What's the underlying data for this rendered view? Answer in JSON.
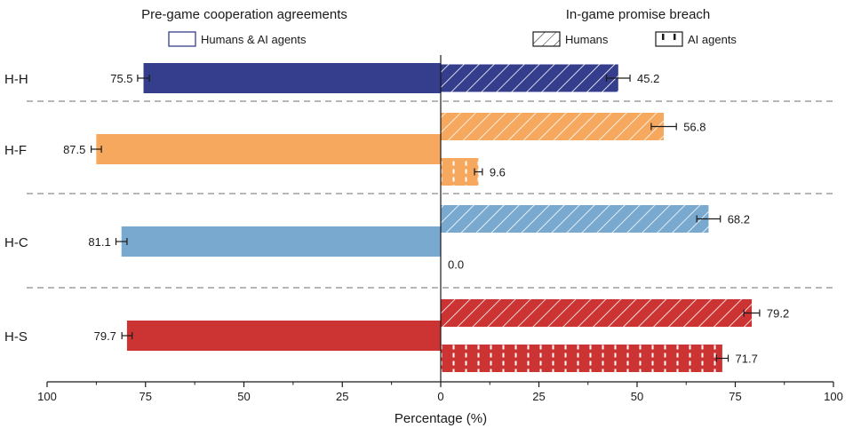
{
  "chart_data": {
    "type": "bar",
    "orientation": "horizontal-diverging",
    "xlabel": "Percentage (%)",
    "ticks": [
      100,
      75,
      50,
      25,
      0,
      25,
      50,
      75,
      100
    ],
    "left_panel": {
      "title": "Pre-game cooperation agreements",
      "legend": "Humans & AI agents",
      "xlim": [
        0,
        100
      ]
    },
    "right_panel": {
      "title": "In-game promise breach",
      "legend_humans": "Humans",
      "legend_ai": "AI agents",
      "xlim": [
        0,
        100
      ]
    },
    "groups": [
      {
        "label": "H-H",
        "color": "#343e8c",
        "agreement": 75.5,
        "agreement_label": "75.5",
        "agreement_err": 1.5,
        "humans": 45.2,
        "humans_label": "45.2",
        "humans_err": 3.0,
        "ai": null,
        "ai_label": ""
      },
      {
        "label": "H-F",
        "color": "#f5a85e",
        "agreement": 87.5,
        "agreement_label": "87.5",
        "agreement_err": 1.3,
        "humans": 56.8,
        "humans_label": "56.8",
        "humans_err": 3.2,
        "ai": 9.6,
        "ai_label": "9.6",
        "ai_err": 1.0
      },
      {
        "label": "H-C",
        "color": "#79a9ce",
        "agreement": 81.1,
        "agreement_label": "81.1",
        "agreement_err": 1.4,
        "humans": 68.2,
        "humans_label": "68.2",
        "humans_err": 3.0,
        "ai": 0.0,
        "ai_label": "0.0",
        "ai_err": 0
      },
      {
        "label": "H-S",
        "color": "#cc3434",
        "agreement": 79.7,
        "agreement_label": "79.7",
        "agreement_err": 1.3,
        "humans": 79.2,
        "humans_label": "79.2",
        "humans_err": 2.0,
        "ai": 71.7,
        "ai_label": "71.7",
        "ai_err": 1.5
      }
    ]
  }
}
